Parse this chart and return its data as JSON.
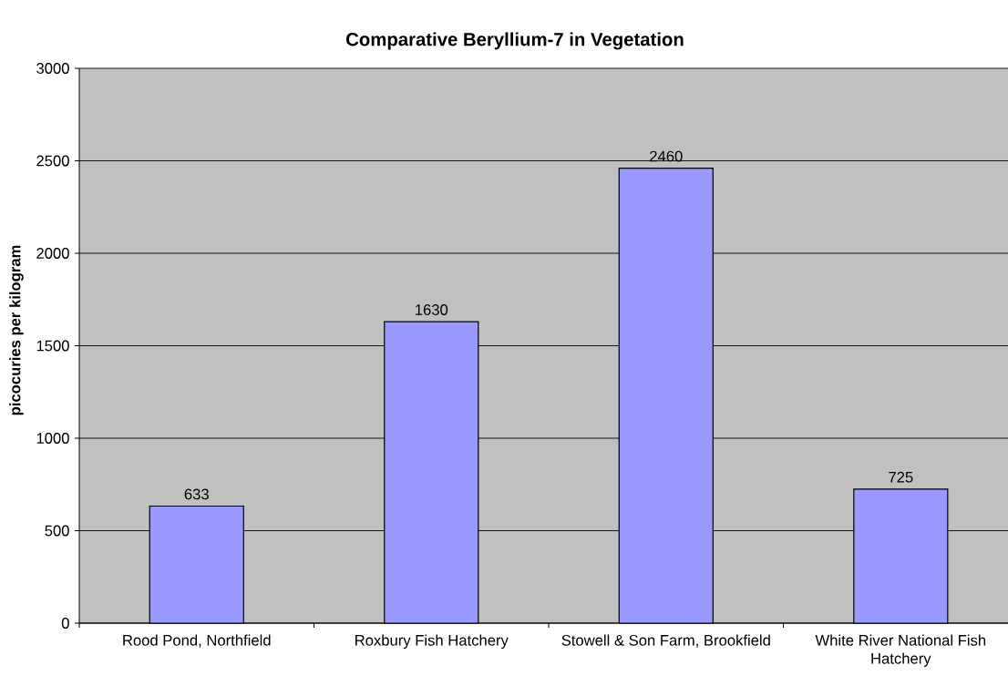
{
  "chart_data": {
    "type": "bar",
    "title": "Comparative Beryllium-7 in Vegetation",
    "ylabel": "picocuries per kilogram",
    "categories": [
      "Rood Pond, Northfield",
      "Roxbury Fish Hatchery",
      "Stowell & Son Farm, Brookfield",
      "White River National Fish Hatchery"
    ],
    "values": [
      633,
      1630,
      2460,
      725
    ],
    "color": "#9999ff",
    "ylim": [
      0,
      3000
    ],
    "yticks": [
      0,
      500,
      1000,
      1500,
      2000,
      2500,
      3000
    ],
    "grid": "y",
    "data_labels": true
  }
}
